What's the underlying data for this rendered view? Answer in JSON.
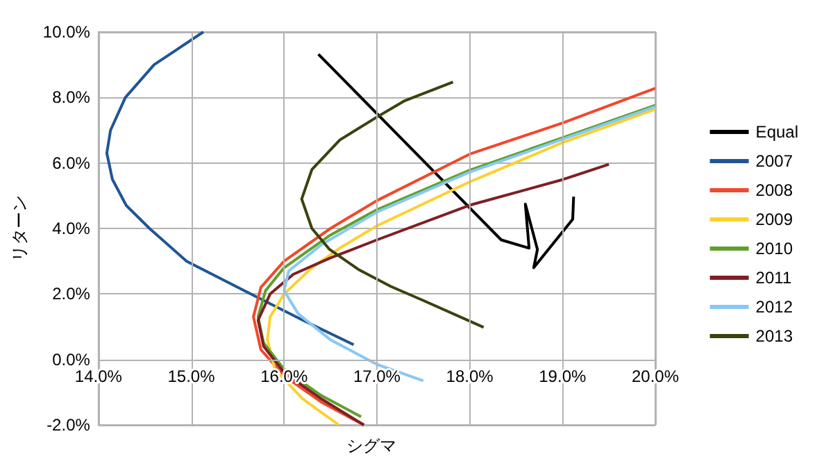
{
  "chart_data": {
    "type": "line",
    "xlabel": "シグマ",
    "ylabel": "リターン",
    "xlim": [
      14,
      20
    ],
    "xticks": [
      {
        "value": 14,
        "label": "14.0%"
      },
      {
        "value": 15,
        "label": "15.0%"
      },
      {
        "value": 16,
        "label": "16.0%"
      },
      {
        "value": 17,
        "label": "17.0%"
      },
      {
        "value": 18,
        "label": "18.0%"
      },
      {
        "value": 19,
        "label": "19.0%"
      },
      {
        "value": 20,
        "label": "20.0%"
      }
    ],
    "ylim": [
      -2,
      10
    ],
    "yticks": [
      {
        "value": -2,
        "label": "-2.0%"
      },
      {
        "value": 0,
        "label": "0.0%"
      },
      {
        "value": 2,
        "label": "2.0%"
      },
      {
        "value": 4,
        "label": "4.0%"
      },
      {
        "value": 6,
        "label": "6.0%"
      },
      {
        "value": 8,
        "label": "8.0%"
      },
      {
        "value": 10,
        "label": "10.0%"
      }
    ],
    "grid": true,
    "legend": "right",
    "marker": "none",
    "line_style": "solid",
    "series": [
      {
        "name": "Equal",
        "color": "#000000",
        "x": [
          16.37,
          18.34,
          18.64,
          18.6,
          18.73,
          18.69,
          19.11,
          19.12
        ],
        "values": [
          9.32,
          3.65,
          3.4,
          4.74,
          3.36,
          2.8,
          4.28,
          4.97
        ]
      },
      {
        "name": "2007",
        "color": "#1f5596",
        "x": [
          15.13,
          14.6,
          14.29,
          14.13,
          14.09,
          14.15,
          14.3,
          14.55,
          14.95,
          15.64,
          16.2,
          16.75
        ],
        "values": [
          10,
          9,
          8,
          7,
          6.3,
          5.5,
          4.7,
          4,
          3,
          2,
          1.2,
          0.45
        ]
      },
      {
        "name": "2008",
        "color": "#f1482b",
        "x": [
          16.86,
          16.4,
          16.0,
          15.75,
          15.67,
          15.75,
          16.0,
          16.5,
          17,
          18,
          19,
          20
        ],
        "values": [
          -2,
          -1.3,
          -0.5,
          0.3,
          1.3,
          2.2,
          3.0,
          4.0,
          4.85,
          6.27,
          7.22,
          8.28
        ]
      },
      {
        "name": "2009",
        "color": "#fdd02f",
        "x": [
          16.59,
          16.2,
          15.9,
          15.82,
          15.85,
          16.0,
          16.3,
          16.6,
          17,
          18,
          19,
          20
        ],
        "values": [
          -2,
          -1.2,
          -0.3,
          0.6,
          1.3,
          2.0,
          2.8,
          3.4,
          4.08,
          5.42,
          6.62,
          7.64
        ]
      },
      {
        "name": "2010",
        "color": "#5fa02c",
        "x": [
          16.83,
          16.4,
          16.0,
          15.78,
          15.72,
          15.8,
          16.0,
          16.5,
          17,
          18,
          19,
          20
        ],
        "values": [
          -1.75,
          -1.1,
          -0.3,
          0.5,
          1.3,
          2.1,
          2.8,
          3.8,
          4.57,
          5.78,
          6.77,
          7.76
        ]
      },
      {
        "name": "2011",
        "color": "#7e1f24",
        "x": [
          16.86,
          16.4,
          16.0,
          15.78,
          15.72,
          15.85,
          16.1,
          16.5,
          17,
          18,
          19,
          19.5
        ],
        "values": [
          -2,
          -1.2,
          -0.4,
          0.4,
          1.2,
          2.0,
          2.6,
          3.1,
          3.65,
          4.71,
          5.49,
          5.96
        ]
      },
      {
        "name": "2012",
        "color": "#88c8f5",
        "x": [
          17.5,
          17.0,
          16.5,
          16.15,
          16.0,
          16.05,
          16.4,
          17,
          18,
          19,
          20
        ],
        "values": [
          -0.65,
          -0.15,
          0.6,
          1.4,
          2.1,
          2.7,
          3.5,
          4.5,
          5.72,
          6.72,
          7.72
        ]
      },
      {
        "name": "2013",
        "color": "#3a420e",
        "x": [
          17.82,
          17.3,
          17.0,
          16.6,
          16.3,
          16.19,
          16.3,
          16.49,
          16.8,
          17.15,
          17.5,
          18.15
        ],
        "values": [
          8.47,
          7.9,
          7.4,
          6.7,
          5.8,
          4.9,
          4.0,
          3.36,
          2.75,
          2.23,
          1.8,
          0.98
        ]
      }
    ]
  }
}
